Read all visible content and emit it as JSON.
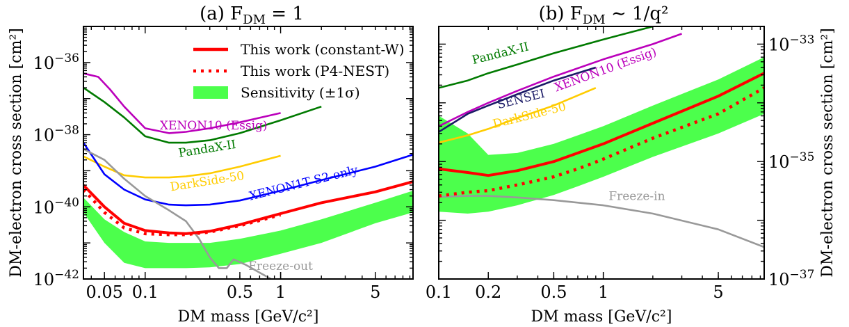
{
  "chart_data": [
    {
      "type": "line",
      "panel": "a",
      "title": "(a)  F_DM = 1",
      "title_parts": {
        "prefix": "(a)  F",
        "sub": "DM",
        "suffix": " = 1"
      },
      "xlabel": "DM mass [GeV/c²]",
      "ylabel": "DM-electron cross section [cm²]",
      "xscale": "log",
      "yscale": "log",
      "xlim": [
        0.035,
        9.5
      ],
      "ylim": [
        1e-42,
        1e-35
      ],
      "xticks": [
        {
          "v": 0.05,
          "label": "0.05"
        },
        {
          "v": 0.1,
          "label": "0.1"
        },
        {
          "v": 0.5,
          "label": "0.5"
        },
        {
          "v": 1,
          "label": "1"
        },
        {
          "v": 5,
          "label": "5"
        }
      ],
      "yticks": [
        {
          "exp": -42,
          "label": "10−42"
        },
        {
          "exp": -40,
          "label": "10−40"
        },
        {
          "exp": -38,
          "label": "10−38"
        },
        {
          "exp": -36,
          "label": "10−36"
        }
      ],
      "legend": {
        "placement": "top-right",
        "entries": [
          {
            "label": "This work (constant-W)",
            "style": "solid",
            "color": "#ff0000"
          },
          {
            "label": "This work (P4-NEST)",
            "style": "dotted",
            "color": "#ff0000"
          },
          {
            "label": "Sensitivity (±1σ)",
            "style": "band",
            "color": "#4cff4c"
          }
        ]
      },
      "band": {
        "name": "Sensitivity (±1σ)",
        "x": [
          0.035,
          0.05,
          0.07,
          0.1,
          0.15,
          0.2,
          0.3,
          0.5,
          1,
          2,
          5,
          9.5
        ],
        "upper": [
          1.8e-40,
          4.5e-41,
          2e-41,
          1.1e-41,
          1e-41,
          1e-41,
          1e-41,
          1.3e-41,
          2.2e-41,
          4.5e-41,
          1.3e-40,
          2.8e-40
        ],
        "lower": [
          7e-41,
          1e-41,
          2.8e-42,
          2e-42,
          2e-42,
          2e-42,
          2.1e-42,
          2.6e-42,
          5e-42,
          1e-41,
          3.5e-41,
          7e-41
        ]
      },
      "series": [
        {
          "name": "This work (constant-W)",
          "color": "#ff0000",
          "style": "solid",
          "x": [
            0.035,
            0.05,
            0.07,
            0.1,
            0.15,
            0.2,
            0.3,
            0.5,
            1,
            2,
            5,
            9.5
          ],
          "y": [
            4e-40,
            1e-40,
            3.5e-41,
            2.2e-41,
            1.9e-41,
            1.8e-41,
            2.1e-41,
            3.2e-41,
            6.5e-41,
            1.3e-40,
            2.6e-40,
            5e-40
          ]
        },
        {
          "name": "This work (P4-NEST)",
          "color": "#ff0000",
          "style": "dotted",
          "x": [
            0.035,
            0.05,
            0.07,
            0.1,
            0.15,
            0.2,
            0.3,
            0.5,
            1
          ],
          "y": [
            3e-40,
            7e-41,
            2.6e-41,
            1.8e-41,
            1.7e-41,
            1.7e-41,
            2e-41,
            3e-41,
            6e-41
          ]
        },
        {
          "name": "XENON10 (Essig)",
          "color": "#bb00bb",
          "style": "solid",
          "x": [
            0.035,
            0.045,
            0.055,
            0.07,
            0.1,
            0.15,
            0.2,
            0.3,
            0.5,
            1
          ],
          "y": [
            5e-37,
            4e-37,
            1.8e-37,
            6e-38,
            1.5e-38,
            1.1e-38,
            1.2e-38,
            1.5e-38,
            2.2e-38,
            4e-38
          ]
        },
        {
          "name": "PandaX-II",
          "color": "#007a00",
          "style": "solid",
          "x": [
            0.035,
            0.05,
            0.07,
            0.1,
            0.15,
            0.2,
            0.3,
            0.5,
            1,
            2
          ],
          "y": [
            2e-37,
            8e-38,
            3e-38,
            9e-39,
            6e-39,
            6e-39,
            7e-39,
            1.1e-38,
            2.5e-38,
            6e-38
          ]
        },
        {
          "name": "DarkSide-50",
          "color": "#ffcc00",
          "style": "solid",
          "x": [
            0.035,
            0.05,
            0.07,
            0.1,
            0.15,
            0.2,
            0.3,
            0.5,
            1
          ],
          "y": [
            2.5e-39,
            1.3e-39,
            7.5e-40,
            6.5e-40,
            6.5e-40,
            7e-40,
            8.5e-40,
            1.3e-39,
            2.6e-39
          ]
        },
        {
          "name": "XENON1T S2-only",
          "color": "#0000ff",
          "style": "solid",
          "x": [
            0.035,
            0.05,
            0.07,
            0.1,
            0.15,
            0.2,
            0.3,
            0.5,
            1,
            2,
            5,
            9.5
          ],
          "y": [
            6e-39,
            8e-40,
            3e-40,
            1.6e-40,
            1.15e-40,
            1.1e-40,
            1.15e-40,
            1.5e-40,
            2.8e-40,
            5.5e-40,
            1.3e-39,
            2.8e-39
          ]
        },
        {
          "name": "Freeze-out",
          "color": "#999999",
          "style": "solid",
          "x": [
            0.035,
            0.05,
            0.07,
            0.1,
            0.15,
            0.2,
            0.25,
            0.3,
            0.35,
            0.4,
            0.45,
            0.55,
            0.7,
            0.85
          ],
          "y": [
            4e-39,
            2e-39,
            6e-40,
            2e-40,
            8e-41,
            4e-41,
            1.3e-41,
            4e-42,
            2e-42,
            2e-42,
            3.5e-42,
            2.5e-42,
            1.5e-42,
            1e-42
          ]
        }
      ],
      "annotations": [
        {
          "text": "XENON10 (Essig)",
          "color": "#bb00bb",
          "x": 0.32,
          "y": 1.4e-38,
          "rot": 0
        },
        {
          "text": "PandaX-II",
          "color": "#007a00",
          "x": 0.29,
          "y": 3.2e-39,
          "rot": -9
        },
        {
          "text": "DarkSide-50",
          "color": "#ffcc00",
          "x": 0.29,
          "y": 4e-40,
          "rot": -9
        },
        {
          "text": "XENON1T S2-only",
          "color": "#0000ff",
          "x": 1.5,
          "y": 3.6e-40,
          "rot": -14
        },
        {
          "text": "Freeze-out",
          "color": "#999999",
          "x": 1.0,
          "y": 1.8e-42,
          "rot": 0
        }
      ]
    },
    {
      "type": "line",
      "panel": "b",
      "title": "(b)  F_DM ~ 1/q²",
      "title_parts": {
        "prefix": "(b)  F",
        "sub": "DM",
        "suffix": " ∼ 1/q²"
      },
      "xlabel": "DM mass [GeV/c²]",
      "ylabel": "DM-electron cross section [cm²]",
      "xscale": "log",
      "yscale": "log",
      "xlim": [
        0.1,
        9.5
      ],
      "ylim": [
        1e-37,
        2e-33
      ],
      "xticks": [
        {
          "v": 0.1,
          "label": "0.1"
        },
        {
          "v": 0.2,
          "label": "0.2"
        },
        {
          "v": 0.5,
          "label": "0.5"
        },
        {
          "v": 1,
          "label": "1"
        },
        {
          "v": 5,
          "label": "5"
        }
      ],
      "yticks": [
        {
          "exp": -37,
          "label": "10−37"
        },
        {
          "exp": -35,
          "label": "10−35"
        },
        {
          "exp": -33,
          "label": "10−33"
        }
      ],
      "band": {
        "name": "Sensitivity (±1σ)",
        "x": [
          0.1,
          0.15,
          0.2,
          0.3,
          0.5,
          0.7,
          1,
          2,
          5,
          9.5
        ],
        "upper": [
          6e-35,
          3e-35,
          1.3e-35,
          1.4e-35,
          2e-35,
          2.8e-35,
          4e-35,
          9e-35,
          2.5e-34,
          6e-34
        ],
        "lower": [
          1.4e-36,
          1.3e-36,
          1.4e-36,
          1.8e-36,
          2.7e-36,
          3.8e-36,
          5.5e-36,
          1.2e-35,
          3e-35,
          6.5e-35
        ]
      },
      "series": [
        {
          "name": "This work (constant-W)",
          "color": "#ff0000",
          "style": "solid",
          "x": [
            0.1,
            0.15,
            0.2,
            0.3,
            0.5,
            0.7,
            1,
            2,
            5,
            9.5
          ],
          "y": [
            7.5e-36,
            6.5e-36,
            5.8e-36,
            7e-36,
            1e-35,
            1.4e-35,
            2e-35,
            4.5e-35,
            1.3e-34,
            3.2e-34
          ]
        },
        {
          "name": "This work (P4-NEST)",
          "color": "#ff0000",
          "style": "dotted",
          "x": [
            0.1,
            0.15,
            0.2,
            0.3,
            0.5,
            0.7,
            1,
            2,
            5,
            9.5
          ],
          "y": [
            2.6e-36,
            3e-36,
            3.2e-36,
            4e-36,
            5.5e-36,
            7.5e-36,
            1.1e-35,
            2.5e-35,
            6.5e-35,
            1.8e-34
          ]
        },
        {
          "name": "PandaX-II",
          "color": "#007a00",
          "style": "solid",
          "x": [
            0.1,
            0.15,
            0.2,
            0.3,
            0.5,
            1,
            2
          ],
          "y": [
            1.8e-34,
            2.4e-34,
            3.2e-34,
            4.5e-34,
            7e-34,
            1.2e-33,
            2e-33
          ]
        },
        {
          "name": "XENON10 (Essig)",
          "color": "#bb00bb",
          "style": "solid",
          "x": [
            0.1,
            0.15,
            0.2,
            0.3,
            0.5,
            1,
            2,
            3
          ],
          "y": [
            4e-35,
            7e-35,
            1e-34,
            1.6e-34,
            2.8e-34,
            5.5e-34,
            1e-33,
            1.5e-33
          ]
        },
        {
          "name": "SENSEI",
          "color": "#1a1a66",
          "style": "solid",
          "x": [
            0.1,
            0.15,
            0.2,
            0.3,
            0.5,
            0.9
          ],
          "y": [
            3.2e-35,
            6.5e-35,
            9e-35,
            1.4e-34,
            2.4e-34,
            4e-34
          ]
        },
        {
          "name": "DarkSide-50",
          "color": "#ffcc00",
          "style": "solid",
          "x": [
            0.1,
            0.15,
            0.2,
            0.3,
            0.5,
            0.9
          ],
          "y": [
            2.1e-35,
            2.8e-35,
            3.6e-35,
            5.5e-35,
            9e-35,
            1.8e-34
          ]
        },
        {
          "name": "Freeze-in",
          "color": "#999999",
          "style": "solid",
          "x": [
            0.1,
            0.15,
            0.2,
            0.3,
            0.5,
            1,
            2,
            5,
            9.5
          ],
          "y": [
            2.5e-36,
            2.6e-36,
            2.6e-36,
            2.45e-36,
            2.2e-36,
            1.8e-36,
            1.3e-36,
            7e-37,
            3.5e-37
          ]
        }
      ],
      "annotations": [
        {
          "text": "PandaX-II",
          "color": "#007a00",
          "x": 0.24,
          "y": 6e-34,
          "rot": -14
        },
        {
          "text": "XENON10 (Essig)",
          "color": "#bb00bb",
          "x": 1.05,
          "y": 3.2e-34,
          "rot": -20
        },
        {
          "text": "SENSEI",
          "color": "#1a1a66",
          "x": 0.32,
          "y": 1e-34,
          "rot": -14
        },
        {
          "text": "DarkSide-50",
          "color": "#ffcc00",
          "x": 0.36,
          "y": 5.3e-35,
          "rot": -14
        },
        {
          "text": "Freeze-in",
          "color": "#999999",
          "x": 1.6,
          "y": 2.2e-36,
          "rot": 0
        }
      ]
    }
  ]
}
